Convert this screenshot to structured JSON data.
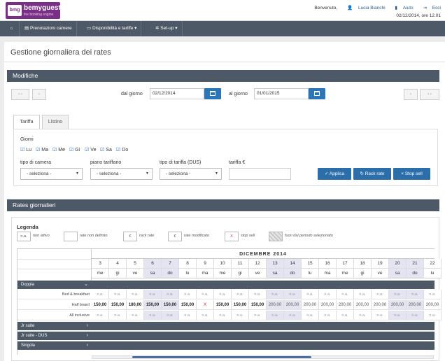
{
  "header": {
    "logo_mark": "bmg",
    "logo_name": "bemyguest",
    "logo_tagline": "the booking engine",
    "welcome": "Benvenuto,",
    "user": "Lucia Bianchi",
    "help": "Aiuto",
    "logout": "Esci",
    "datetime": "02/12/2014, ore 12.01"
  },
  "nav": {
    "items": [
      {
        "label": "Prenotazioni camere"
      },
      {
        "label": "Disponibilità e tariffe ▾"
      },
      {
        "label": "Set-up ▾"
      }
    ]
  },
  "page_title": "Gestione giornaliera dei rates",
  "modifiche": {
    "title": "Modifiche",
    "prev_prev": "‹ ‹",
    "prev": "‹",
    "next": "›",
    "next_next": "› ›",
    "from_label": "dal giorno",
    "from_value": "02/12/2014",
    "to_label": "al giorno",
    "to_value": "01/01/2015"
  },
  "tabs": [
    {
      "label": "Tariffa"
    },
    {
      "label": "Listino"
    }
  ],
  "form": {
    "days_label": "Giorni",
    "days": [
      "Lu",
      "Ma",
      "Me",
      "Gi",
      "Ve",
      "Sa",
      "Do"
    ],
    "room_type_label": "tipo di camera",
    "room_type_value": "- seleziona -",
    "rate_plan_label": "piano tariffario",
    "rate_plan_value": "- seleziona -",
    "rate_type_label": "tipo di tariffa (DUS)",
    "rate_type_value": "- seleziona -",
    "price_label": "tariffa €",
    "price_value": "",
    "apply": "Applica",
    "rack_rate": "Rack rate",
    "stop_sell": "Stop sell"
  },
  "rates": {
    "title": "Rates giornalieri",
    "legend_title": "Legenda",
    "legend": [
      {
        "swatch": "n.a.",
        "text": "non attivo"
      },
      {
        "swatch": "",
        "text": "rate non definito"
      },
      {
        "swatch": "€",
        "text": "rack rate"
      },
      {
        "swatch": "€",
        "text": "rate modificato"
      },
      {
        "swatch": "X",
        "text": "stop sell"
      },
      {
        "swatch": "",
        "text": "fuori dal periodo selezionato"
      }
    ],
    "month": "DICEMBRE 2014",
    "days": [
      "3",
      "4",
      "5",
      "6",
      "7",
      "8",
      "9",
      "10",
      "11",
      "12",
      "13",
      "14",
      "15",
      "16",
      "17",
      "18",
      "19",
      "20",
      "21",
      "22"
    ],
    "weekdays": [
      "me",
      "gi",
      "ve",
      "sa",
      "do",
      "lu",
      "ma",
      "me",
      "gi",
      "ve",
      "sa",
      "do",
      "lu",
      "ma",
      "me",
      "gi",
      "ve",
      "sa",
      "do",
      "lu"
    ],
    "rooms": [
      {
        "name": "Doppia",
        "open": true
      },
      {
        "name": "Jr suite",
        "open": false
      },
      {
        "name": "Jr suite - DUS",
        "open": false
      },
      {
        "name": "Singola",
        "open": false
      }
    ],
    "subrows": [
      {
        "label": "Bed & breakfast",
        "values": [
          "n.a.",
          "n.a.",
          "n.a.",
          "n.a.",
          "n.a.",
          "n.a.",
          "n.a.",
          "n.a.",
          "n.a.",
          "n.a.",
          "n.a.",
          "n.a.",
          "n.a.",
          "n.a.",
          "n.a.",
          "n.a.",
          "n.a.",
          "n.a.",
          "n.a.",
          "n.a."
        ]
      },
      {
        "label": "Half board",
        "values": [
          "150,00",
          "150,00",
          "180,00",
          "150,00",
          "150,00",
          "150,00",
          "X",
          "150,00",
          "150,00",
          "150,00",
          "200,00",
          "200,00",
          "200,00",
          "200,00",
          "200,00",
          "200,00",
          "200,00",
          "200,00",
          "200,00",
          "200,00"
        ]
      },
      {
        "label": "All inclusive",
        "values": [
          "n.a.",
          "n.a.",
          "n.a.",
          "n.a.",
          "n.a.",
          "n.a.",
          "n.a.",
          "n.a.",
          "n.a.",
          "n.a.",
          "n.a.",
          "n.a.",
          "n.a.",
          "n.a.",
          "n.a.",
          "n.a.",
          "n.a.",
          "n.a.",
          "n.a.",
          "n.a."
        ]
      }
    ]
  },
  "colors": {
    "nav_bg": "#4d5967",
    "primary_blue": "#2c75b8",
    "brand_purple": "#7a2f86",
    "weekend_bg": "#e4e4f3",
    "stop_sell_red": "#d9262c"
  }
}
